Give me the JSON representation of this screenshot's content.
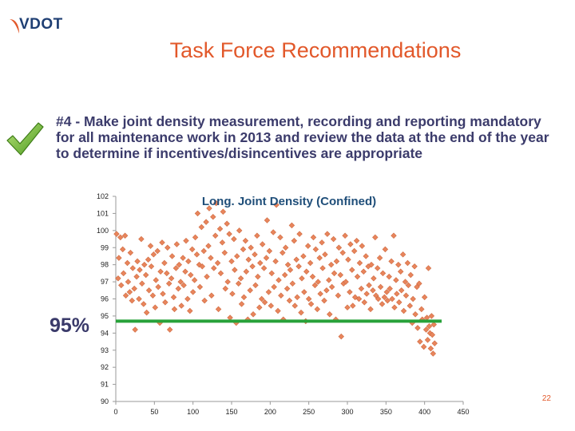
{
  "header": {
    "logo_text": "VDOT",
    "title": "Task Force Recommendations"
  },
  "recommendation": {
    "text": "#4 - Make joint density measurement, recording and reporting mandatory for all maintenance work in 2013 and review the data at the end of the year to determine if incentives/disincentives are appropriate"
  },
  "threshold": {
    "label": "95%",
    "value": 94.7,
    "color": "#28a23a"
  },
  "page_number": "22",
  "colors": {
    "title": "#e2582a",
    "marker": "#e8855c",
    "marker_stroke": "#cf6a40",
    "brand": "#1f3f73"
  },
  "chart_data": {
    "type": "scatter",
    "title": "Long. Joint Density (Confined)",
    "xlabel": "",
    "ylabel": "",
    "xlim": [
      0,
      450
    ],
    "ylim": [
      90,
      102
    ],
    "x_ticks": [
      "0",
      "50",
      "100",
      "150",
      "200",
      "250",
      "300",
      "350",
      "400",
      "450"
    ],
    "y_ticks": [
      "90",
      "91",
      "92",
      "93",
      "94",
      "95",
      "96",
      "97",
      "98",
      "99",
      "100",
      "101",
      "102"
    ],
    "grid": false,
    "legend": "none",
    "marker": "diamond",
    "points": [
      [
        1,
        99.8
      ],
      [
        3,
        97.2
      ],
      [
        4,
        98.4
      ],
      [
        6,
        99.6
      ],
      [
        7,
        96.8
      ],
      [
        9,
        98.9
      ],
      [
        10,
        97.5
      ],
      [
        12,
        99.7
      ],
      [
        13,
        96.2
      ],
      [
        15,
        98.1
      ],
      [
        16,
        97.0
      ],
      [
        18,
        96.4
      ],
      [
        19,
        98.7
      ],
      [
        21,
        95.9
      ],
      [
        22,
        97.8
      ],
      [
        24,
        96.6
      ],
      [
        25,
        94.2
      ],
      [
        27,
        97.3
      ],
      [
        28,
        98.2
      ],
      [
        30,
        96.0
      ],
      [
        31,
        97.7
      ],
      [
        33,
        99.5
      ],
      [
        34,
        96.9
      ],
      [
        36,
        95.7
      ],
      [
        37,
        98.0
      ],
      [
        39,
        97.4
      ],
      [
        40,
        95.2
      ],
      [
        42,
        98.3
      ],
      [
        43,
        96.5
      ],
      [
        45,
        99.1
      ],
      [
        46,
        97.9
      ],
      [
        48,
        96.2
      ],
      [
        49,
        98.6
      ],
      [
        51,
        95.5
      ],
      [
        52,
        97.1
      ],
      [
        54,
        98.8
      ],
      [
        55,
        96.7
      ],
      [
        57,
        94.6
      ],
      [
        58,
        97.6
      ],
      [
        60,
        99.3
      ],
      [
        61,
        96.3
      ],
      [
        63,
        98.1
      ],
      [
        64,
        95.8
      ],
      [
        66,
        97.5
      ],
      [
        67,
        99.0
      ],
      [
        69,
        96.9
      ],
      [
        70,
        94.2
      ],
      [
        72,
        97.2
      ],
      [
        73,
        98.5
      ],
      [
        75,
        96.1
      ],
      [
        76,
        95.4
      ],
      [
        78,
        97.8
      ],
      [
        79,
        99.2
      ],
      [
        81,
        96.6
      ],
      [
        82,
        98.0
      ],
      [
        84,
        97.0
      ],
      [
        85,
        95.6
      ],
      [
        87,
        98.4
      ],
      [
        88,
        96.8
      ],
      [
        90,
        97.6
      ],
      [
        91,
        99.4
      ],
      [
        93,
        96.0
      ],
      [
        94,
        98.2
      ],
      [
        96,
        95.3
      ],
      [
        97,
        97.4
      ],
      [
        99,
        98.9
      ],
      [
        100,
        96.4
      ],
      [
        102,
        97.1
      ],
      [
        103,
        99.6
      ],
      [
        105,
        98.6
      ],
      [
        106,
        101.0
      ],
      [
        108,
        98.0
      ],
      [
        109,
        96.7
      ],
      [
        111,
        100.2
      ],
      [
        112,
        97.9
      ],
      [
        114,
        98.8
      ],
      [
        115,
        95.9
      ],
      [
        117,
        100.5
      ],
      [
        118,
        97.3
      ],
      [
        120,
        99.1
      ],
      [
        121,
        101.3
      ],
      [
        123,
        98.4
      ],
      [
        124,
        96.2
      ],
      [
        126,
        100.8
      ],
      [
        127,
        97.8
      ],
      [
        129,
        99.7
      ],
      [
        130,
        101.6
      ],
      [
        132,
        98.1
      ],
      [
        133,
        95.4
      ],
      [
        135,
        100.1
      ],
      [
        136,
        97.5
      ],
      [
        138,
        99.3
      ],
      [
        139,
        101.1
      ],
      [
        141,
        98.7
      ],
      [
        142,
        96.6
      ],
      [
        144,
        100.4
      ],
      [
        145,
        97.0
      ],
      [
        147,
        99.8
      ],
      [
        148,
        94.9
      ],
      [
        150,
        98.2
      ],
      [
        151,
        96.3
      ],
      [
        153,
        99.5
      ],
      [
        154,
        97.7
      ],
      [
        156,
        94.6
      ],
      [
        157,
        98.5
      ],
      [
        159,
        96.9
      ],
      [
        160,
        100.0
      ],
      [
        162,
        97.2
      ],
      [
        163,
        95.7
      ],
      [
        165,
        98.9
      ],
      [
        166,
        96.1
      ],
      [
        168,
        99.4
      ],
      [
        169,
        97.6
      ],
      [
        171,
        94.8
      ],
      [
        172,
        98.3
      ],
      [
        174,
        96.5
      ],
      [
        175,
        99.0
      ],
      [
        177,
        97.9
      ],
      [
        178,
        95.1
      ],
      [
        180,
        98.6
      ],
      [
        181,
        96.8
      ],
      [
        183,
        99.7
      ],
      [
        184,
        97.3
      ],
      [
        186,
        95.5
      ],
      [
        187,
        98.1
      ],
      [
        189,
        96.0
      ],
      [
        190,
        99.2
      ],
      [
        192,
        97.8
      ],
      [
        193,
        95.8
      ],
      [
        195,
        98.4
      ],
      [
        196,
        100.6
      ],
      [
        198,
        96.4
      ],
      [
        199,
        98.8
      ],
      [
        201,
        95.6
      ],
      [
        202,
        97.5
      ],
      [
        204,
        99.9
      ],
      [
        205,
        96.7
      ],
      [
        207,
        98.2
      ],
      [
        208,
        101.5
      ],
      [
        210,
        95.3
      ],
      [
        211,
        97.1
      ],
      [
        213,
        99.6
      ],
      [
        214,
        96.2
      ],
      [
        216,
        98.7
      ],
      [
        217,
        94.8
      ],
      [
        219,
        97.4
      ],
      [
        220,
        99.0
      ],
      [
        222,
        96.6
      ],
      [
        223,
        98.0
      ],
      [
        225,
        95.9
      ],
      [
        226,
        97.7
      ],
      [
        228,
        100.3
      ],
      [
        229,
        96.9
      ],
      [
        231,
        99.4
      ],
      [
        232,
        95.6
      ],
      [
        234,
        98.3
      ],
      [
        235,
        96.1
      ],
      [
        237,
        97.9
      ],
      [
        238,
        99.8
      ],
      [
        240,
        95.2
      ],
      [
        241,
        97.2
      ],
      [
        243,
        98.5
      ],
      [
        244,
        96.4
      ],
      [
        246,
        94.7
      ],
      [
        247,
        97.6
      ],
      [
        249,
        99.1
      ],
      [
        250,
        96.0
      ],
      [
        252,
        98.1
      ],
      [
        253,
        95.7
      ],
      [
        255,
        97.3
      ],
      [
        256,
        99.6
      ],
      [
        258,
        96.8
      ],
      [
        259,
        98.9
      ],
      [
        261,
        95.4
      ],
      [
        262,
        97.0
      ],
      [
        264,
        98.4
      ],
      [
        265,
        96.3
      ],
      [
        267,
        99.3
      ],
      [
        268,
        97.8
      ],
      [
        270,
        95.9
      ],
      [
        271,
        98.6
      ],
      [
        273,
        96.5
      ],
      [
        274,
        99.8
      ],
      [
        276,
        97.1
      ],
      [
        277,
        95.1
      ],
      [
        279,
        98.0
      ],
      [
        280,
        96.7
      ],
      [
        282,
        99.5
      ],
      [
        283,
        97.5
      ],
      [
        285,
        94.8
      ],
      [
        286,
        98.2
      ],
      [
        288,
        96.2
      ],
      [
        289,
        99.0
      ],
      [
        291,
        97.4
      ],
      [
        292,
        93.8
      ],
      [
        294,
        98.7
      ],
      [
        295,
        96.9
      ],
      [
        297,
        99.7
      ],
      [
        298,
        97.0
      ],
      [
        300,
        95.5
      ],
      [
        301,
        98.3
      ],
      [
        303,
        96.4
      ],
      [
        304,
        99.2
      ],
      [
        306,
        97.7
      ],
      [
        307,
        95.6
      ],
      [
        309,
        98.8
      ],
      [
        310,
        96.1
      ],
      [
        312,
        99.4
      ],
      [
        313,
        97.3
      ],
      [
        315,
        96.0
      ],
      [
        316,
        98.1
      ],
      [
        318,
        96.6
      ],
      [
        319,
        99.1
      ],
      [
        321,
        97.6
      ],
      [
        322,
        95.8
      ],
      [
        324,
        98.5
      ],
      [
        325,
        96.3
      ],
      [
        327,
        97.9
      ],
      [
        328,
        96.8
      ],
      [
        330,
        95.4
      ],
      [
        331,
        98.0
      ],
      [
        333,
        96.5
      ],
      [
        334,
        97.2
      ],
      [
        336,
        99.6
      ],
      [
        337,
        96.2
      ],
      [
        339,
        97.8
      ],
      [
        340,
        96.0
      ],
      [
        342,
        98.4
      ],
      [
        343,
        96.7
      ],
      [
        345,
        95.7
      ],
      [
        346,
        97.5
      ],
      [
        348,
        96.1
      ],
      [
        349,
        98.9
      ],
      [
        351,
        96.4
      ],
      [
        352,
        95.9
      ],
      [
        354,
        97.3
      ],
      [
        355,
        96.6
      ],
      [
        357,
        98.2
      ],
      [
        358,
        96.0
      ],
      [
        360,
        99.7
      ],
      [
        361,
        95.5
      ],
      [
        363,
        97.1
      ],
      [
        364,
        96.3
      ],
      [
        366,
        98.0
      ],
      [
        367,
        95.8
      ],
      [
        369,
        97.6
      ],
      [
        370,
        96.5
      ],
      [
        372,
        98.6
      ],
      [
        373,
        95.3
      ],
      [
        375,
        97.0
      ],
      [
        376,
        96.2
      ],
      [
        378,
        98.1
      ],
      [
        379,
        96.8
      ],
      [
        381,
        95.6
      ],
      [
        382,
        97.4
      ],
      [
        384,
        94.6
      ],
      [
        385,
        96.0
      ],
      [
        387,
        97.9
      ],
      [
        388,
        95.1
      ],
      [
        390,
        96.7
      ],
      [
        391,
        94.3
      ],
      [
        393,
        96.9
      ],
      [
        394,
        93.5
      ],
      [
        396,
        95.4
      ],
      [
        397,
        94.8
      ],
      [
        399,
        93.2
      ],
      [
        400,
        96.1
      ],
      [
        402,
        94.2
      ],
      [
        403,
        94.9
      ],
      [
        404,
        93.6
      ],
      [
        405,
        97.8
      ],
      [
        406,
        94.4
      ],
      [
        407,
        94.0
      ],
      [
        408,
        93.1
      ],
      [
        409,
        95.0
      ],
      [
        410,
        93.9
      ],
      [
        411,
        92.8
      ],
      [
        412,
        94.5
      ],
      [
        413,
        93.4
      ]
    ]
  }
}
